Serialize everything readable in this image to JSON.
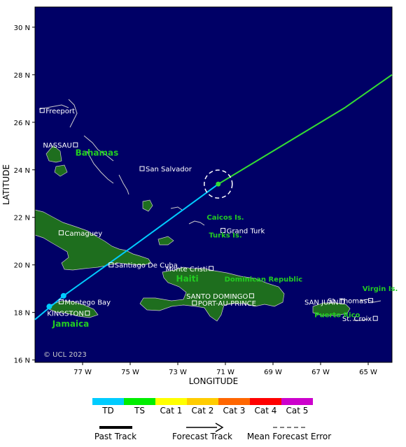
{
  "map": {
    "axis_title_x": "LONGITUDE",
    "axis_title_y": "LATITUDE",
    "lat_ticks": [
      "30 N",
      "28 N",
      "26 N",
      "24 N",
      "22 N",
      "20 N",
      "18 N",
      "16 N"
    ],
    "lon_ticks": [
      "77 W",
      "75 W",
      "73 W",
      "71 W",
      "69 W",
      "67 W",
      "65 W"
    ],
    "copyright": "© UCL 2023",
    "colors": {
      "ocean": "#000066",
      "land": "#1e6e1e",
      "coast": "#cccccc",
      "past_track": "#00ccff",
      "forecast_track": "#33dd33",
      "label_region": "#22cc22",
      "label_place": "#ffffff"
    }
  },
  "places": [
    {
      "name": "Freeport",
      "lon": -78.7,
      "lat": 26.5
    },
    {
      "name": "NASSAU",
      "lon": -77.3,
      "lat": 25.05
    },
    {
      "name": "San Salvador",
      "lon": -74.5,
      "lat": 24.05
    },
    {
      "name": "Camaguey",
      "lon": -77.9,
      "lat": 21.35
    },
    {
      "name": "Grand Turk",
      "lon": -71.1,
      "lat": 21.45
    },
    {
      "name": "Santiago De Cuba",
      "lon": -75.8,
      "lat": 20.0
    },
    {
      "name": "Monte Cristi",
      "lon": -71.6,
      "lat": 19.85
    },
    {
      "name": "Montego Bay",
      "lon": -77.9,
      "lat": 18.45
    },
    {
      "name": "KINGSTON",
      "lon": -76.8,
      "lat": 17.97
    },
    {
      "name": "SANTO DOMINGO",
      "lon": -69.9,
      "lat": 18.7
    },
    {
      "name": "PORT-AU-PRINCE",
      "lon": -72.3,
      "lat": 18.4
    },
    {
      "name": "SAN JUAN",
      "lon": -66.1,
      "lat": 18.45
    },
    {
      "name": "St. Thomas",
      "lon": -64.9,
      "lat": 18.5
    },
    {
      "name": "St. Croix",
      "lon": -64.7,
      "lat": 17.75
    }
  ],
  "regions": [
    {
      "name": "Bahamas",
      "lon": -76.4,
      "lat": 24.6
    },
    {
      "name": "Caicos Is.",
      "lon": -71.0,
      "lat": 21.9
    },
    {
      "name": "Turks Is.",
      "lon": -71.0,
      "lat": 21.15
    },
    {
      "name": "Haiti",
      "lon": -72.6,
      "lat": 19.3
    },
    {
      "name": "Dominican Republic",
      "lon": -69.4,
      "lat": 19.3
    },
    {
      "name": "Jamaica",
      "lon": -77.5,
      "lat": 17.4
    },
    {
      "name": "Puerto Rico",
      "lon": -66.3,
      "lat": 17.8
    },
    {
      "name": "Virgin Is.",
      "lon": -64.5,
      "lat": 18.9
    }
  ],
  "track": {
    "past": [
      {
        "lon": -79.0,
        "lat": 17.7
      },
      {
        "lon": -77.8,
        "lat": 18.7
      },
      {
        "lon": -75.0,
        "lat": 20.7
      },
      {
        "lon": -71.3,
        "lat": 23.4
      }
    ],
    "past_markers": [
      {
        "lon": -78.4,
        "lat": 18.25
      },
      {
        "lon": -77.8,
        "lat": 18.7
      }
    ],
    "forecast": [
      {
        "lon": -71.3,
        "lat": 23.4
      },
      {
        "lon": -66.0,
        "lat": 26.6
      },
      {
        "lon": -64.0,
        "lat": 28.0
      }
    ],
    "current_position": {
      "lon": -71.3,
      "lat": 23.4
    }
  },
  "legend": {
    "categories": [
      {
        "label": "TD",
        "color": "#00ccff"
      },
      {
        "label": "TS",
        "color": "#00ee00"
      },
      {
        "label": "Cat 1",
        "color": "#ffff00"
      },
      {
        "label": "Cat 2",
        "color": "#ffcc00"
      },
      {
        "label": "Cat 3",
        "color": "#ff6600"
      },
      {
        "label": "Cat 4",
        "color": "#ff0000"
      },
      {
        "label": "Cat 5",
        "color": "#cc00cc"
      }
    ],
    "past_track_label": "Past Track",
    "forecast_track_label": "Forecast Track",
    "error_label": "Mean Forecast Error"
  }
}
